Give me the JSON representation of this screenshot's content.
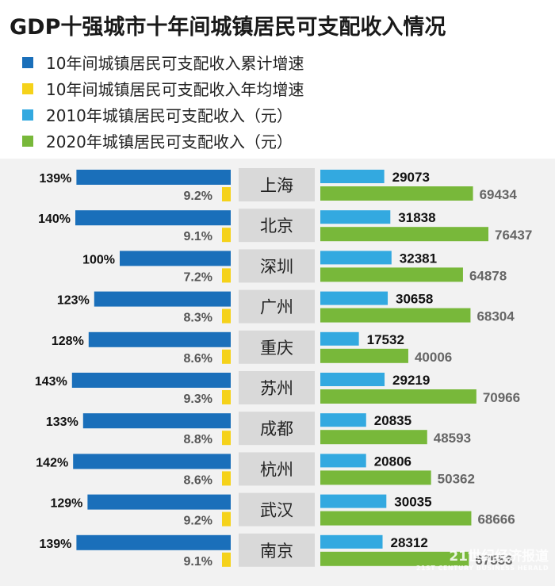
{
  "title": "GDP十强城市十年间城镇居民可支配收入情况",
  "legend": [
    {
      "label": "10年间城镇居民可支配收入累计增速",
      "color": "#1a6fba"
    },
    {
      "label": "10年间城镇居民可支配收入年均增速",
      "color": "#f5d21a"
    },
    {
      "label": "2010年城镇居民可支配收入（元）",
      "color": "#33a9e0"
    },
    {
      "label": "2020年城镇居民可支配收入（元）",
      "color": "#78b83a"
    }
  ],
  "watermark": {
    "main": "21世纪经济报道",
    "sub": "21ST CENTURY BUSINESS HERALD"
  },
  "chart_data": {
    "type": "bar",
    "categories": [
      "上海",
      "北京",
      "深圳",
      "广州",
      "重庆",
      "苏州",
      "成都",
      "杭州",
      "武汉",
      "南京"
    ],
    "series": [
      {
        "name": "10年间城镇居民可支配收入累计增速",
        "unit": "%",
        "values": [
          139,
          140,
          100,
          123,
          128,
          143,
          133,
          142,
          129,
          139
        ]
      },
      {
        "name": "10年间城镇居民可支配收入年均增速",
        "unit": "%",
        "values": [
          9.2,
          9.1,
          7.2,
          8.3,
          8.6,
          9.3,
          8.8,
          8.6,
          9.2,
          9.1
        ]
      },
      {
        "name": "2010年城镇居民可支配收入（元）",
        "values": [
          29073,
          31838,
          32381,
          30658,
          17532,
          29219,
          20835,
          20806,
          30035,
          28312
        ]
      },
      {
        "name": "2020年城镇居民可支配收入（元）",
        "values": [
          69434,
          76437,
          64878,
          68304,
          40006,
          70966,
          48593,
          50362,
          68666,
          67553
        ]
      }
    ],
    "value_labels": {
      "cumulative": [
        "139%",
        "140%",
        "100%",
        "123%",
        "128%",
        "143%",
        "133%",
        "142%",
        "129%",
        "139%"
      ],
      "annual": [
        "9.2%",
        "9.1%",
        "7.2%",
        "8.3%",
        "8.6%",
        "9.3%",
        "8.8%",
        "8.6%",
        "9.2%",
        "9.1%"
      ]
    },
    "colors": {
      "cumulative": "#1a6fba",
      "annual": "#f5d21a",
      "y2010": "#33a9e0",
      "y2020": "#78b83a",
      "city_box": "#d9d9d9"
    }
  }
}
